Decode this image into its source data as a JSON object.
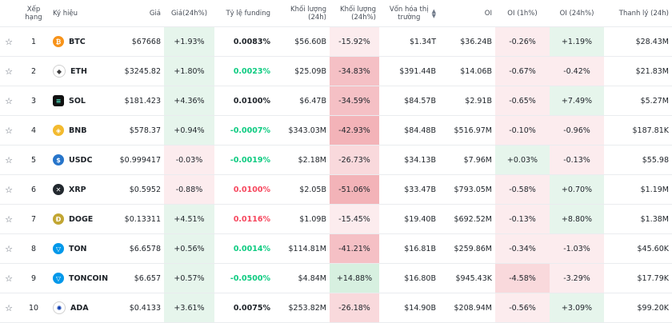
{
  "headers": {
    "rank": "Xếp hạng",
    "symbol": "Ký hiệu",
    "price": "Giá",
    "change": "Giá(24h%)",
    "funding": "Tỷ lệ funding",
    "volume": "Khối lượng (24h)",
    "volume_change": "Khối lượng (24h%)",
    "mcap_line1": "Vốn hóa thị",
    "mcap_line2": "trường",
    "oi": "OI",
    "oi_1h": "OI (1h%)",
    "oi_24h": "OI (24h%)",
    "liq": "Thanh lý (24h)"
  },
  "colors": {
    "green": "#0ecb81",
    "red": "#f6465d"
  },
  "rows": [
    {
      "rank": "1",
      "symbol": "BTC",
      "icon": "bitcoin-icon",
      "price": "$67668",
      "change": "+1.93%",
      "funding": "0.0083%",
      "volume": "$56.60B",
      "vol_change": "-15.92%",
      "mcap": "$1.34T",
      "oi": "$36.24B",
      "oi1h": "-0.26%",
      "oi24h": "+1.19%",
      "liq": "$28.43M"
    },
    {
      "rank": "2",
      "symbol": "ETH",
      "icon": "ethereum-icon",
      "price": "$3245.82",
      "change": "+1.80%",
      "funding": "0.0023%",
      "volume": "$25.09B",
      "vol_change": "-34.83%",
      "mcap": "$391.44B",
      "oi": "$14.06B",
      "oi1h": "-0.67%",
      "oi24h": "-0.42%",
      "liq": "$21.83M"
    },
    {
      "rank": "3",
      "symbol": "SOL",
      "icon": "solana-icon",
      "price": "$181.423",
      "change": "+4.36%",
      "funding": "0.0100%",
      "volume": "$6.47B",
      "vol_change": "-34.59%",
      "mcap": "$84.57B",
      "oi": "$2.91B",
      "oi1h": "-0.65%",
      "oi24h": "+7.49%",
      "liq": "$5.27M"
    },
    {
      "rank": "4",
      "symbol": "BNB",
      "icon": "bnb-icon",
      "price": "$578.37",
      "change": "+0.94%",
      "funding": "-0.0007%",
      "volume": "$343.03M",
      "vol_change": "-42.93%",
      "mcap": "$84.48B",
      "oi": "$516.97M",
      "oi1h": "-0.10%",
      "oi24h": "-0.96%",
      "liq": "$187.81K"
    },
    {
      "rank": "5",
      "symbol": "USDC",
      "icon": "usdc-icon",
      "price": "$0.999417",
      "change": "-0.03%",
      "funding": "-0.0019%",
      "volume": "$2.18M",
      "vol_change": "-26.73%",
      "mcap": "$34.13B",
      "oi": "$7.96M",
      "oi1h": "+0.03%",
      "oi24h": "-0.13%",
      "liq": "$55.98"
    },
    {
      "rank": "6",
      "symbol": "XRP",
      "icon": "xrp-icon",
      "price": "$0.5952",
      "change": "-0.88%",
      "funding": "0.0100%",
      "volume": "$2.05B",
      "vol_change": "-51.06%",
      "mcap": "$33.47B",
      "oi": "$793.05M",
      "oi1h": "-0.58%",
      "oi24h": "+0.70%",
      "liq": "$1.19M"
    },
    {
      "rank": "7",
      "symbol": "DOGE",
      "icon": "dogecoin-icon",
      "price": "$0.13311",
      "change": "+4.51%",
      "funding": "0.0116%",
      "volume": "$1.09B",
      "vol_change": "-15.45%",
      "mcap": "$19.40B",
      "oi": "$692.52M",
      "oi1h": "-0.13%",
      "oi24h": "+8.80%",
      "liq": "$1.38M"
    },
    {
      "rank": "8",
      "symbol": "TON",
      "icon": "toncoin-icon",
      "price": "$6.6578",
      "change": "+0.56%",
      "funding": "0.0014%",
      "volume": "$114.81M",
      "vol_change": "-41.21%",
      "mcap": "$16.81B",
      "oi": "$259.86M",
      "oi1h": "-0.34%",
      "oi24h": "-1.03%",
      "liq": "$45.60K"
    },
    {
      "rank": "9",
      "symbol": "TONCOIN",
      "icon": "toncoin-icon",
      "price": "$6.657",
      "change": "+0.57%",
      "funding": "-0.0500%",
      "volume": "$4.84M",
      "vol_change": "+14.88%",
      "mcap": "$16.80B",
      "oi": "$945.43K",
      "oi1h": "-4.58%",
      "oi24h": "-3.29%",
      "liq": "$17.79K"
    },
    {
      "rank": "10",
      "symbol": "ADA",
      "icon": "cardano-icon",
      "price": "$0.4133",
      "change": "+3.61%",
      "funding": "0.0075%",
      "volume": "$253.82M",
      "vol_change": "-26.18%",
      "mcap": "$14.90B",
      "oi": "$208.94M",
      "oi1h": "-0.56%",
      "oi24h": "+3.09%",
      "liq": "$99.20K"
    }
  ]
}
